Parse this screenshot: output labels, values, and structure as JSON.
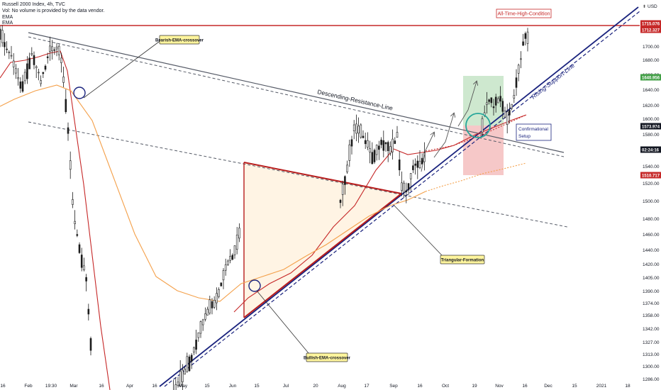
{
  "header": {
    "title": "Russell 2000 Index, 4h, TVC",
    "volume_note": "Vol: No volume is provided by the data vendor.",
    "indicator_1": "EMA",
    "indicator_2": "EMA"
  },
  "currency_label": "USD",
  "chart_data": {
    "type": "candlestick",
    "y_ticks": [
      1286,
      1300,
      1313,
      1327,
      1342,
      1358,
      1374,
      1390,
      1405,
      1420,
      1440,
      1460,
      1480,
      1500,
      1520,
      1540,
      1560,
      1580,
      1600,
      1620,
      1640,
      1660,
      1680,
      1700
    ],
    "ylim": [
      1274,
      1730
    ],
    "x_ticks": [
      "16",
      "Feb",
      "19:30",
      "Mar",
      "16",
      "Apr",
      "16",
      "May",
      "15",
      "Jun",
      "15",
      "Jul",
      "20",
      "Aug",
      "17",
      "Sep",
      "16",
      "Oct",
      "19",
      "Nov",
      "16",
      "Dec",
      "15",
      "2021",
      "18"
    ],
    "price_labels": [
      {
        "value": "1715.076",
        "color": "#c62828"
      },
      {
        "value": "1712.327",
        "color": "#c62828"
      },
      {
        "value": "1640.956",
        "color": "#43a047"
      },
      {
        "value": "1573.974",
        "color": "#131722"
      },
      {
        "value": "02:24:16",
        "color": "#131722"
      },
      {
        "value": "1510.717",
        "color": "#c62828"
      }
    ],
    "annotations": {
      "ath": "All-Time-High-Condition",
      "bearish": "Bearish-EMA-crossover",
      "bullish": "Bullish-EMA-crossover",
      "triangle": "Triangular-Formation",
      "descending": "Descending-Resistance-Line",
      "rising": "Rising-Support-Line",
      "confirm_1": "Confirmational",
      "confirm_2": "Setup"
    }
  }
}
